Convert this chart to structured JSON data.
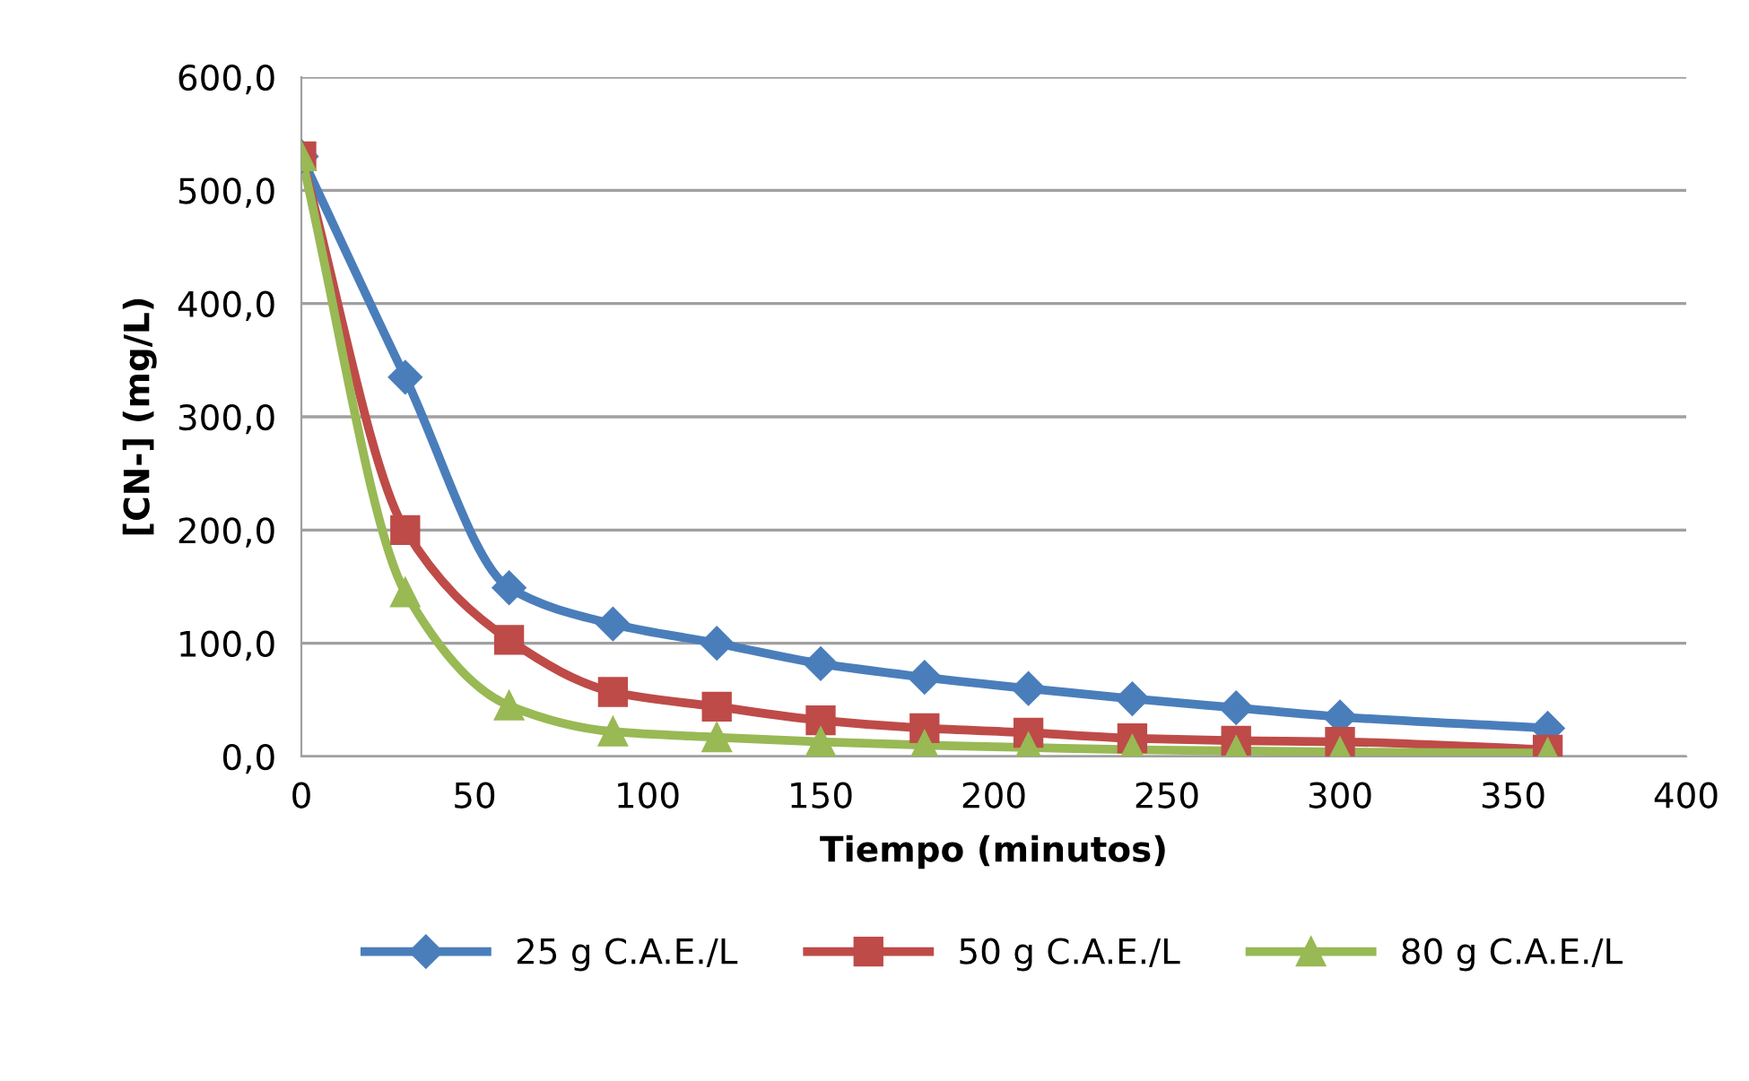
{
  "chart_data": {
    "type": "line",
    "xlabel": "Tiempo (minutos)",
    "ylabel": "[CN-] (mg/L)",
    "x": [
      0,
      30,
      60,
      90,
      120,
      150,
      180,
      210,
      240,
      270,
      300,
      360
    ],
    "series": [
      {
        "name": "25 g C.A.E./L",
        "color": "#4a7ebb",
        "marker": "diamond",
        "values": [
          530,
          335,
          149,
          117,
          100,
          82,
          70,
          60,
          51,
          43,
          35,
          25
        ]
      },
      {
        "name": "50 g C.A.E./L",
        "color": "#be4b48",
        "marker": "square",
        "values": [
          530,
          200,
          103,
          57,
          44,
          32,
          25,
          21,
          16,
          14,
          13,
          6
        ]
      },
      {
        "name": "80 g C.A.E./L",
        "color": "#98b954",
        "marker": "triangle",
        "values": [
          530,
          145,
          45,
          22,
          17,
          13,
          10,
          8,
          6,
          5,
          4,
          3
        ]
      }
    ],
    "xlim": [
      0,
      400
    ],
    "xticks": [
      0,
      50,
      100,
      150,
      200,
      250,
      300,
      350,
      400
    ],
    "ylim": [
      0,
      600
    ],
    "yticks": [
      {
        "value": 0,
        "label": "0,0"
      },
      {
        "value": 100,
        "label": "100,0"
      },
      {
        "value": 200,
        "label": "200,0"
      },
      {
        "value": 300,
        "label": "300,0"
      },
      {
        "value": 400,
        "label": "400,0"
      },
      {
        "value": 500,
        "label": "500,0"
      },
      {
        "value": 600,
        "label": "600,0"
      }
    ],
    "grid": "y",
    "legend": "bottom",
    "line_style": "solid"
  }
}
